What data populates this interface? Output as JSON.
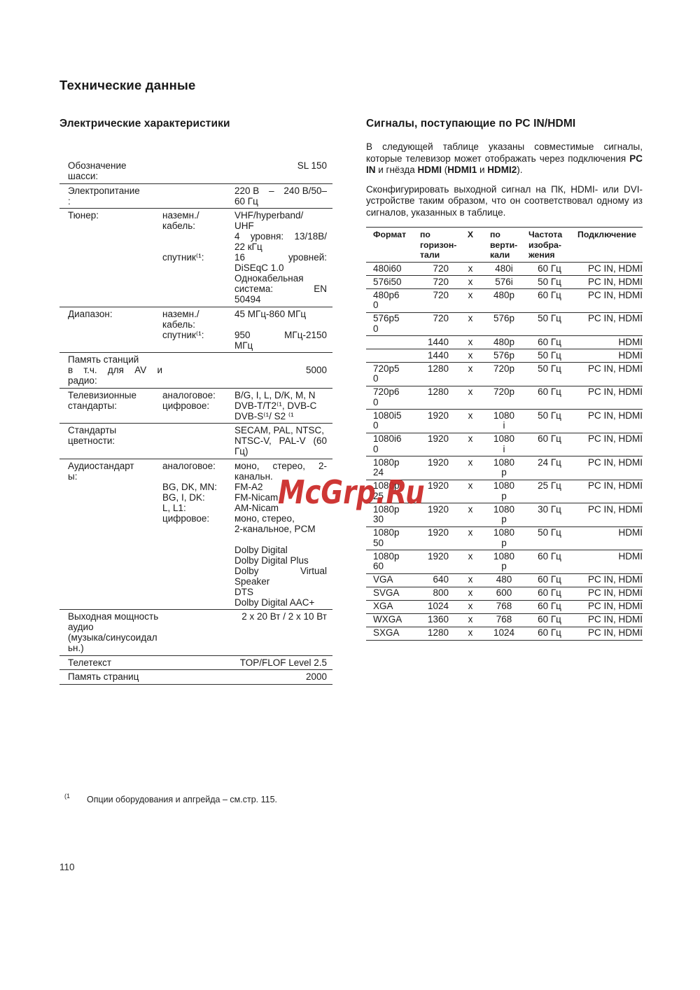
{
  "page": {
    "title": "Технические данные",
    "page_number": "110",
    "watermark": "McGrp.Ru"
  },
  "footnote": {
    "marker": "(1",
    "text": "Опции оборудования и апгрейда – см.стр. 115."
  },
  "colors": {
    "watermark_red": "#cb2826",
    "text": "#1a1a1a",
    "rule": "#2d2d2d"
  },
  "left_section": {
    "heading": "Электрические характеристики",
    "table": {
      "rows": [
        {
          "label": [
            "Обозначение",
            "шасси:"
          ],
          "sub": [],
          "value": [
            "SL 150"
          ],
          "align": "right"
        },
        {
          "label": [
            "Электропитание",
            ":"
          ],
          "sub": [],
          "value": [
            [
              "220 В",
              "–",
              "240 В/50–"
            ],
            "60 Гц"
          ]
        },
        {
          "label": [
            "Тюнер:"
          ],
          "sub": [
            "наземн./",
            "кабель:",
            "",
            "",
            "спутник⁽¹:"
          ],
          "value": [
            "VHF/hyperband/",
            "UHF",
            [
              "4",
              "уровня:",
              "13/18В/"
            ],
            "22 кГц",
            [
              "16",
              "уровней:"
            ],
            "DiSEqC 1.0",
            "Однокабельная",
            [
              "система:",
              "EN"
            ],
            "50494"
          ]
        },
        {
          "label": [
            "Диапазон:"
          ],
          "sub": [
            "наземн./",
            "кабель:",
            "спутник⁽¹:"
          ],
          "value": [
            "45 МГц-860 МГц",
            "",
            [
              "950",
              "МГц-2150"
            ],
            "МГц"
          ]
        },
        {
          "label": [
            "Память станций",
            [
              "в",
              "т.ч.",
              "для",
              "AV",
              "и"
            ],
            "радио:"
          ],
          "sub": [],
          "value": [
            "",
            "5000"
          ],
          "align": "right"
        },
        {
          "label": [
            "Телевизионные",
            "стандарты:"
          ],
          "sub": [
            "аналоговое:",
            "цифровое:"
          ],
          "value": [
            "B/G, I, L, D/K, M, N",
            "DVB-T/T2⁽¹, DVB-C",
            "DVB-S⁽¹/ S2 ⁽¹"
          ]
        },
        {
          "label": [
            "Стандарты",
            "цветности:"
          ],
          "sub": [],
          "value": [
            "SECAM, PAL, NTSC,",
            [
              "NTSC-V,",
              "PAL-V",
              "(60"
            ],
            "Гц)"
          ]
        },
        {
          "label": [
            "Аудиостандарт",
            "ы:"
          ],
          "sub": [
            "аналоговое:",
            "",
            "BG, DK, MN:",
            "BG, I, DK:",
            "L, L1:",
            "цифровое:"
          ],
          "value": [
            [
              "моно,",
              "стерео,",
              "2-"
            ],
            "канальн.",
            "FM-A2",
            "FM-Nicam",
            "AM-Nicam",
            "моно, стерео,",
            "2-канальное, PCM",
            "",
            "Dolby Digital",
            "Dolby Digital Plus",
            [
              "Dolby",
              "Virtual"
            ],
            "Speaker",
            "DTS",
            "Dolby Digital AAC+"
          ]
        },
        {
          "label": [
            "Выходная мощность",
            "аудио",
            "(музыка/синусоидал",
            "ьн.)"
          ],
          "wide": true,
          "sub": [],
          "value": [
            "2 x 20 Вт / 2 x 10 Вт"
          ],
          "align": "right"
        },
        {
          "label": [
            "Телетекст"
          ],
          "wide": true,
          "sub": [],
          "value": [
            "TOP/FLOF Level 2.5"
          ],
          "align": "right"
        },
        {
          "label": [
            "Память страниц"
          ],
          "wide": true,
          "sub": [],
          "value": [
            "2000"
          ],
          "align": "right"
        }
      ]
    }
  },
  "right_section": {
    "heading": "Сигналы, поступающие по PC IN/HDMI",
    "paragraphs": [
      {
        "segments": [
          {
            "t": "В следующей таблице указаны совместимые сигналы, которые телевизор может отображать через подключения ",
            "b": false
          },
          {
            "t": "PC IN",
            "b": true
          },
          {
            "t": " и гнёзда ",
            "b": false
          },
          {
            "t": "HDMI",
            "b": true
          },
          {
            "t": " (",
            "b": false
          },
          {
            "t": "HDMI1",
            "b": true
          },
          {
            "t": " и ",
            "b": false
          },
          {
            "t": "HDMI2",
            "b": true
          },
          {
            "t": ").",
            "b": false
          }
        ]
      },
      {
        "segments": [
          {
            "t": "Сконфигурировать выходной сигнал на ПК, HDMI- или DVI-устройстве таким образом, что он соответствовал одному из сигналов, указанных в таблице.",
            "b": false
          }
        ]
      }
    ],
    "table": {
      "header": [
        {
          "lines": [
            "Формат"
          ]
        },
        {
          "lines": [
            "по",
            "горизон-",
            "тали"
          ]
        },
        {
          "lines": [
            "X"
          ]
        },
        {
          "lines": [
            "по",
            "верти-",
            "кали"
          ]
        },
        {
          "lines": [
            "Частота",
            "изобра-",
            "жения"
          ]
        },
        {
          "lines": [
            "Подключение"
          ]
        }
      ],
      "rows": [
        {
          "format": "480i60",
          "h": "720",
          "x": "x",
          "v": "480i",
          "f": "60 Гц",
          "conn": "PC IN, HDMI"
        },
        {
          "format": "576i50",
          "h": "720",
          "x": "x",
          "v": "576i",
          "f": "50 Гц",
          "conn": "PC IN, HDMI"
        },
        {
          "format": "480p60",
          "h": "720",
          "x": "x",
          "v": "480p",
          "f": "60 Гц",
          "conn": "PC IN, HDMI"
        },
        {
          "format": "576p50",
          "h": "720",
          "x": "x",
          "v": "576p",
          "f": "50 Гц",
          "conn": "PC IN, HDMI"
        },
        {
          "format": "",
          "h": "1440",
          "x": "x",
          "v": "480p",
          "f": "60 Гц",
          "conn": "HDMI"
        },
        {
          "format": "",
          "h": "1440",
          "x": "x",
          "v": "576p",
          "f": "50 Гц",
          "conn": "HDMI"
        },
        {
          "format": "720p50",
          "h": "1280",
          "x": "x",
          "v": "720p",
          "f": "50 Гц",
          "conn": "PC IN, HDMI"
        },
        {
          "format": "720p60",
          "h": "1280",
          "x": "x",
          "v": "720p",
          "f": "60 Гц",
          "conn": "PC IN, HDMI"
        },
        {
          "format": "1080i50",
          "h": "1920",
          "x": "x",
          "v": "1080i",
          "f": "50 Гц",
          "conn": "PC IN, HDMI"
        },
        {
          "format": "1080i60",
          "h": "1920",
          "x": "x",
          "v": "1080i",
          "f": "60 Гц",
          "conn": "PC IN, HDMI"
        },
        {
          "format": "1080p24",
          "h": "1920",
          "x": "x",
          "v": "1080p",
          "f": "24 Гц",
          "conn": "PC IN, HDMI"
        },
        {
          "format": "1080p25",
          "h": "1920",
          "x": "x",
          "v": "1080p",
          "f": "25 Гц",
          "conn": "PC IN, HDMI"
        },
        {
          "format": "1080p30",
          "h": "1920",
          "x": "x",
          "v": "1080p",
          "f": "30 Гц",
          "conn": "PC IN, HDMI"
        },
        {
          "format": "1080p50",
          "h": "1920",
          "x": "x",
          "v": "1080p",
          "f": "50 Гц",
          "conn": "HDMI"
        },
        {
          "format": "1080p60",
          "h": "1920",
          "x": "x",
          "v": "1080p",
          "f": "60 Гц",
          "conn": "HDMI"
        },
        {
          "format": "VGA",
          "h": "640",
          "x": "x",
          "v": "480",
          "f": "60 Гц",
          "conn": "PC IN, HDMI"
        },
        {
          "format": "SVGA",
          "h": "800",
          "x": "x",
          "v": "600",
          "f": "60 Гц",
          "conn": "PC IN, HDMI"
        },
        {
          "format": "XGA",
          "h": "1024",
          "x": "x",
          "v": "768",
          "f": "60 Гц",
          "conn": "PC IN, HDMI"
        },
        {
          "format": "WXGA",
          "h": "1360",
          "x": "x",
          "v": "768",
          "f": "60 Гц",
          "conn": "PC IN, HDMI"
        },
        {
          "format": "SXGA",
          "h": "1280",
          "x": "x",
          "v": "1024",
          "f": "60 Гц",
          "conn": "PC IN, HDMI"
        }
      ]
    }
  }
}
